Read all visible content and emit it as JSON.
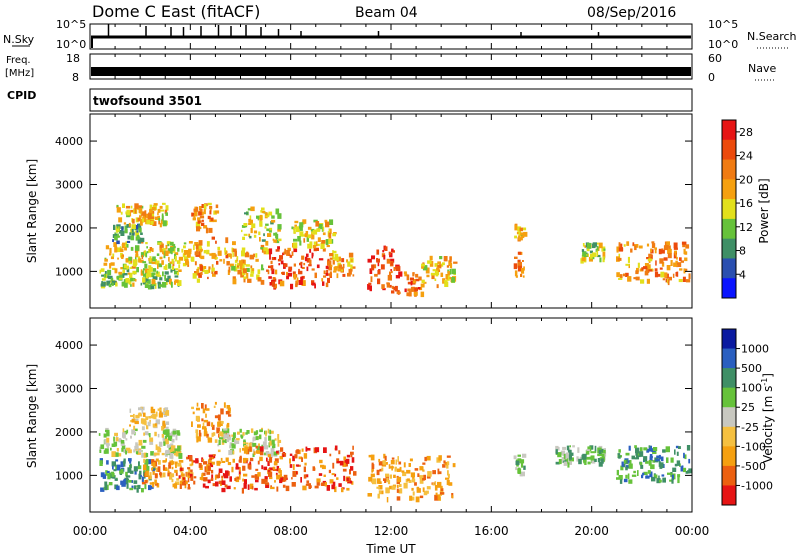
{
  "header": {
    "title": "Dome C East (fitACF)",
    "beam": "Beam 04",
    "date": "08/Sep/2016"
  },
  "top_panels": {
    "nsky": {
      "label": "N.Sky",
      "ticks": [
        "10^5",
        "10^0"
      ],
      "right_label": "N.Search",
      "right_ticks": [
        "10^5",
        "10^0"
      ]
    },
    "freq": {
      "label_line1": "Freq.",
      "label_line2": "[MHz]",
      "ticks": [
        "18",
        "8"
      ],
      "right_label": "Nave",
      "right_ticks": [
        "60",
        "0"
      ]
    },
    "cpid": {
      "label": "CPID",
      "value": "twofsound 3501"
    }
  },
  "colors": {
    "power_scale": [
      "#0a14ff",
      "#2a4fb0",
      "#3f8f66",
      "#66c23a",
      "#e2e01c",
      "#f5a00f",
      "#f07b12",
      "#ec4a0c",
      "#e61414"
    ],
    "velocity_scale": [
      "#0a1aa0",
      "#2a5fc0",
      "#3f8f66",
      "#66c23a",
      "#c8c8c0",
      "#f5c040",
      "#f5a010",
      "#ec6010",
      "#e61414"
    ]
  },
  "chart_data": [
    {
      "type": "heatmap",
      "name": "power",
      "ylabel": "Slant Range [km]",
      "yticks": [
        1000,
        2000,
        3000,
        4000
      ],
      "ylim": [
        180,
        4600
      ],
      "xlim": [
        0,
        24
      ],
      "colorbar": {
        "label": "Power [dB]",
        "ticks": [
          "4",
          "8",
          "12",
          "16",
          "20",
          "24",
          "28"
        ],
        "range": [
          0,
          30
        ]
      },
      "blobs": [
        {
          "t0": 0.3,
          "t1": 3.5,
          "r0": 700,
          "r1": 1100,
          "v": 12
        },
        {
          "t0": 0.5,
          "t1": 4.0,
          "r0": 1100,
          "r1": 1700,
          "v": 16
        },
        {
          "t0": 0.8,
          "t1": 2.0,
          "r0": 1700,
          "r1": 2100,
          "v": 10
        },
        {
          "t0": 1.0,
          "t1": 3.0,
          "r0": 2100,
          "r1": 2600,
          "v": 18
        },
        {
          "t0": 4.0,
          "t1": 5.5,
          "r0": 800,
          "r1": 1800,
          "v": 20
        },
        {
          "t0": 4.0,
          "t1": 5.0,
          "r0": 2000,
          "r1": 2600,
          "v": 22
        },
        {
          "t0": 5.5,
          "t1": 7.0,
          "r0": 800,
          "r1": 1700,
          "v": 18
        },
        {
          "t0": 6.0,
          "t1": 7.5,
          "r0": 1700,
          "r1": 2500,
          "v": 14
        },
        {
          "t0": 7.0,
          "t1": 9.5,
          "r0": 700,
          "r1": 1600,
          "v": 26
        },
        {
          "t0": 8.0,
          "t1": 9.8,
          "r0": 1600,
          "r1": 2200,
          "v": 16
        },
        {
          "t0": 9.5,
          "t1": 10.5,
          "r0": 900,
          "r1": 1500,
          "v": 20
        },
        {
          "t0": 11.0,
          "t1": 12.3,
          "r0": 500,
          "r1": 1600,
          "v": 27
        },
        {
          "t0": 12.5,
          "t1": 13.2,
          "r0": 500,
          "r1": 1000,
          "v": 24
        },
        {
          "t0": 13.2,
          "t1": 14.5,
          "r0": 700,
          "r1": 1400,
          "v": 18
        },
        {
          "t0": 16.9,
          "t1": 17.3,
          "r0": 900,
          "r1": 1500,
          "v": 22
        },
        {
          "t0": 16.9,
          "t1": 17.3,
          "r0": 1700,
          "r1": 2100,
          "v": 18
        },
        {
          "t0": 19.5,
          "t1": 20.5,
          "r0": 1300,
          "r1": 1700,
          "v": 12
        },
        {
          "t0": 21.0,
          "t1": 23.9,
          "r0": 800,
          "r1": 1700,
          "v": 22
        }
      ]
    },
    {
      "type": "heatmap",
      "name": "velocity",
      "ylabel": "Slant Range [km]",
      "xlabel": "Time UT",
      "xticks": [
        "00:00",
        "04:00",
        "08:00",
        "12:00",
        "16:00",
        "20:00",
        "00:00"
      ],
      "yticks": [
        1000,
        2000,
        3000,
        4000
      ],
      "ylim": [
        180,
        4600
      ],
      "xlim": [
        0,
        24
      ],
      "colorbar": {
        "label": "Velocity [m s^-1]",
        "ticks": [
          "1000",
          "500",
          "100",
          "25",
          "-25",
          "-100",
          "-500",
          "-1000"
        ]
      },
      "blobs": [
        {
          "t0": 0.3,
          "t1": 2.5,
          "r0": 700,
          "r1": 1400,
          "v": 2
        },
        {
          "t0": 0.3,
          "t1": 3.5,
          "r0": 1500,
          "r1": 2100,
          "v": 4
        },
        {
          "t0": 2.0,
          "t1": 4.0,
          "r0": 800,
          "r1": 1400,
          "v": 6
        },
        {
          "t0": 1.5,
          "t1": 3.0,
          "r0": 2100,
          "r1": 2600,
          "v": 5
        },
        {
          "t0": 3.5,
          "t1": 6.0,
          "r0": 700,
          "r1": 1500,
          "v": 7
        },
        {
          "t0": 4.0,
          "t1": 5.5,
          "r0": 1800,
          "r1": 2700,
          "v": 6
        },
        {
          "t0": 5.0,
          "t1": 7.5,
          "r0": 1500,
          "r1": 2100,
          "v": 4
        },
        {
          "t0": 6.0,
          "t1": 10.5,
          "r0": 700,
          "r1": 1700,
          "v": 7
        },
        {
          "t0": 11.0,
          "t1": 14.5,
          "r0": 500,
          "r1": 1500,
          "v": 6
        },
        {
          "t0": 16.9,
          "t1": 17.3,
          "r0": 900,
          "r1": 1500,
          "v": 3
        },
        {
          "t0": 18.5,
          "t1": 20.5,
          "r0": 1300,
          "r1": 1700,
          "v": 3
        },
        {
          "t0": 21.0,
          "t1": 23.9,
          "r0": 900,
          "r1": 1700,
          "v": 2
        }
      ]
    }
  ]
}
